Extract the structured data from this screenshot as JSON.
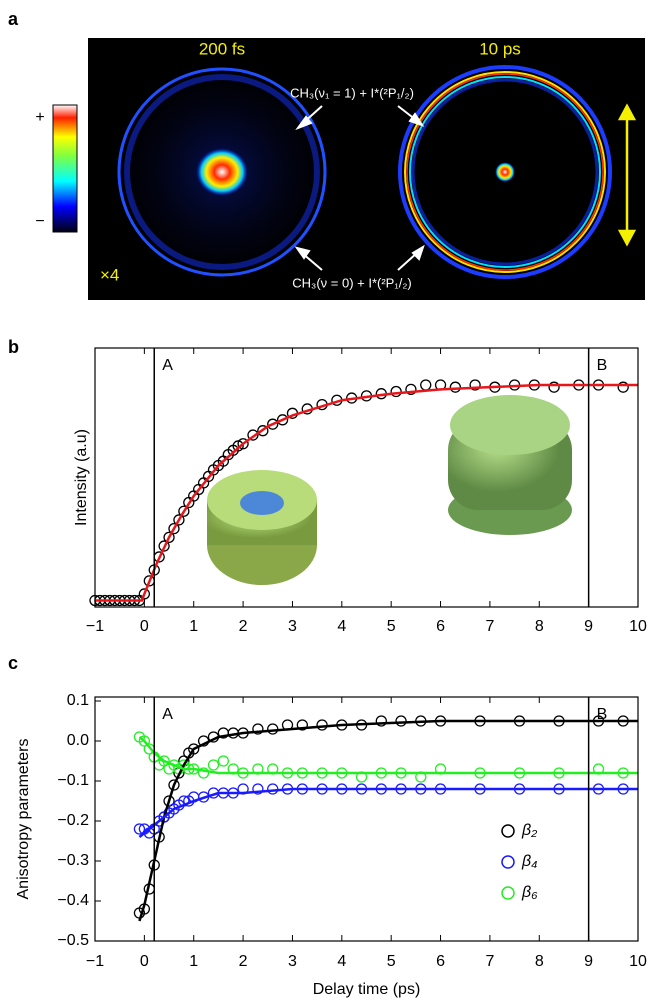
{
  "figure_a": {
    "panel_label": "a",
    "left_title": "200 fs",
    "right_title": "10 ps",
    "label_upper": "CH₃(ν₁ = 1) + I*(²P₁/₂)",
    "label_lower": "CH₃(ν = 0) + I*(²P₁/₂)",
    "scale_note": "×4",
    "colorbar_plus": "+",
    "colorbar_minus": "−"
  },
  "chart_data": [
    {
      "type": "scatter",
      "panel_label": "b",
      "y_label": "Intensity (a.u)",
      "xlim": [
        -1,
        10
      ],
      "ylim": [
        -0.03,
        1.16
      ],
      "xticks": [
        {
          "value": -1,
          "label": "−1"
        },
        0,
        1,
        2,
        3,
        4,
        5,
        6,
        7,
        8,
        9,
        10
      ],
      "markers": [
        {
          "x": 0.2,
          "label": "A"
        },
        {
          "x": 9,
          "label": "B"
        }
      ],
      "x": [
        -1.0,
        -0.9,
        -0.8,
        -0.7,
        -0.6,
        -0.5,
        -0.4,
        -0.3,
        -0.2,
        -0.1,
        0.0,
        0.1,
        0.2,
        0.3,
        0.4,
        0.5,
        0.6,
        0.7,
        0.8,
        0.9,
        1.0,
        1.1,
        1.2,
        1.3,
        1.4,
        1.5,
        1.6,
        1.7,
        1.8,
        1.9,
        2.0,
        2.2,
        2.4,
        2.6,
        2.8,
        3.0,
        3.3,
        3.6,
        3.9,
        4.2,
        4.5,
        4.8,
        5.1,
        5.4,
        5.7,
        6.0,
        6.3,
        6.7,
        7.1,
        7.5,
        7.9,
        8.3,
        8.8,
        9.2,
        9.7
      ],
      "fit_x": [
        -1,
        -0.05,
        0,
        0.25,
        0.5,
        0.75,
        1,
        1.5,
        2,
        2.5,
        3,
        4,
        5,
        6,
        7,
        8,
        9,
        10
      ],
      "series": [
        {
          "color": "#000000",
          "fit_color": "#e8161b",
          "values": [
            0,
            0,
            0,
            0,
            0,
            0,
            0,
            0,
            0,
            0,
            0.03,
            0.09,
            0.14,
            0.2,
            0.25,
            0.29,
            0.33,
            0.37,
            0.41,
            0.45,
            0.48,
            0.51,
            0.54,
            0.57,
            0.6,
            0.62,
            0.64,
            0.67,
            0.69,
            0.71,
            0.72,
            0.76,
            0.78,
            0.81,
            0.83,
            0.86,
            0.88,
            0.9,
            0.92,
            0.93,
            0.94,
            0.95,
            0.96,
            0.97,
            0.99,
            0.99,
            0.98,
            0.99,
            0.98,
            0.99,
            0.99,
            0.98,
            0.99,
            0.99,
            0.98
          ],
          "fit": [
            0,
            0,
            0.03,
            0.17,
            0.29,
            0.39,
            0.48,
            0.62,
            0.72,
            0.8,
            0.85,
            0.92,
            0.95,
            0.97,
            0.98,
            0.99,
            0.99,
            0.99
          ]
        }
      ]
    },
    {
      "type": "scatter",
      "panel_label": "c",
      "y_label": "Anisotropy parameters",
      "x_label": "Delay time (ps)",
      "xlim": [
        -1,
        10
      ],
      "ylim": [
        -0.5,
        0.11
      ],
      "xticks": [
        {
          "value": -1,
          "label": "−1"
        },
        0,
        1,
        2,
        3,
        4,
        5,
        6,
        7,
        8,
        9,
        10
      ],
      "yticks": [
        {
          "value": -0.5,
          "label": "−0.5"
        },
        {
          "value": -0.4,
          "label": "−0.4"
        },
        {
          "value": -0.3,
          "label": "−0.3"
        },
        {
          "value": -0.2,
          "label": "−0.2"
        },
        {
          "value": -0.1,
          "label": "−0.1"
        },
        {
          "value": 0,
          "label": "0.0"
        },
        0.1
      ],
      "markers": [
        {
          "x": 0.2,
          "label": "A"
        },
        {
          "x": 9,
          "label": "B"
        }
      ],
      "legend": "lower right",
      "x": [
        -0.1,
        0,
        0.1,
        0.2,
        0.3,
        0.4,
        0.5,
        0.6,
        0.7,
        0.8,
        0.9,
        1.0,
        1.2,
        1.4,
        1.6,
        1.8,
        2.0,
        2.3,
        2.6,
        2.9,
        3.2,
        3.6,
        4.0,
        4.4,
        4.8,
        5.2,
        5.6,
        6.0,
        6.8,
        7.6,
        8.4,
        9.2,
        9.7
      ],
      "fit_x": [
        -0.1,
        0,
        0.2,
        0.4,
        0.6,
        0.8,
        1,
        1.5,
        2,
        3,
        4,
        6,
        8,
        10
      ],
      "series": [
        {
          "name": "β₂",
          "color": "#000000",
          "fit_color": "#000000",
          "values": [
            -0.43,
            -0.42,
            -0.37,
            -0.31,
            -0.24,
            -0.19,
            -0.15,
            -0.11,
            -0.08,
            -0.05,
            -0.03,
            -0.02,
            0.0,
            0.01,
            0.02,
            0.02,
            0.02,
            0.03,
            0.03,
            0.04,
            0.04,
            0.04,
            0.04,
            0.04,
            0.05,
            0.05,
            0.05,
            0.05,
            0.05,
            0.05,
            0.05,
            0.05,
            0.05
          ],
          "fit": [
            -0.45,
            -0.41,
            -0.3,
            -0.19,
            -0.11,
            -0.06,
            -0.02,
            0.01,
            0.02,
            0.03,
            0.04,
            0.05,
            0.05,
            0.05
          ]
        },
        {
          "name": "β₄",
          "color": "#1a1aff",
          "fit_color": "#1a1aff",
          "values": [
            -0.22,
            -0.22,
            -0.23,
            -0.22,
            -0.2,
            -0.19,
            -0.18,
            -0.17,
            -0.16,
            -0.15,
            -0.15,
            -0.14,
            -0.14,
            -0.13,
            -0.13,
            -0.13,
            -0.12,
            -0.12,
            -0.12,
            -0.12,
            -0.12,
            -0.12,
            -0.12,
            -0.12,
            -0.12,
            -0.12,
            -0.12,
            -0.12,
            -0.12,
            -0.12,
            -0.12,
            -0.12,
            -0.12
          ],
          "fit": [
            -0.24,
            -0.23,
            -0.21,
            -0.19,
            -0.17,
            -0.16,
            -0.15,
            -0.13,
            -0.13,
            -0.12,
            -0.12,
            -0.12,
            -0.12,
            -0.12
          ]
        },
        {
          "name": "β₆",
          "color": "#22ee22",
          "fit_color": "#22ee22",
          "values": [
            0.01,
            0.0,
            -0.02,
            -0.04,
            -0.06,
            -0.05,
            -0.07,
            -0.06,
            -0.07,
            -0.06,
            -0.07,
            -0.07,
            -0.08,
            -0.06,
            -0.05,
            -0.07,
            -0.08,
            -0.07,
            -0.07,
            -0.08,
            -0.08,
            -0.08,
            -0.08,
            -0.09,
            -0.08,
            -0.08,
            -0.09,
            -0.07,
            -0.08,
            -0.08,
            -0.08,
            -0.07,
            -0.08
          ],
          "fit": [
            0.01,
            0.0,
            -0.03,
            -0.05,
            -0.06,
            -0.07,
            -0.07,
            -0.08,
            -0.08,
            -0.08,
            -0.08,
            -0.08,
            -0.08,
            -0.08
          ]
        }
      ]
    }
  ]
}
